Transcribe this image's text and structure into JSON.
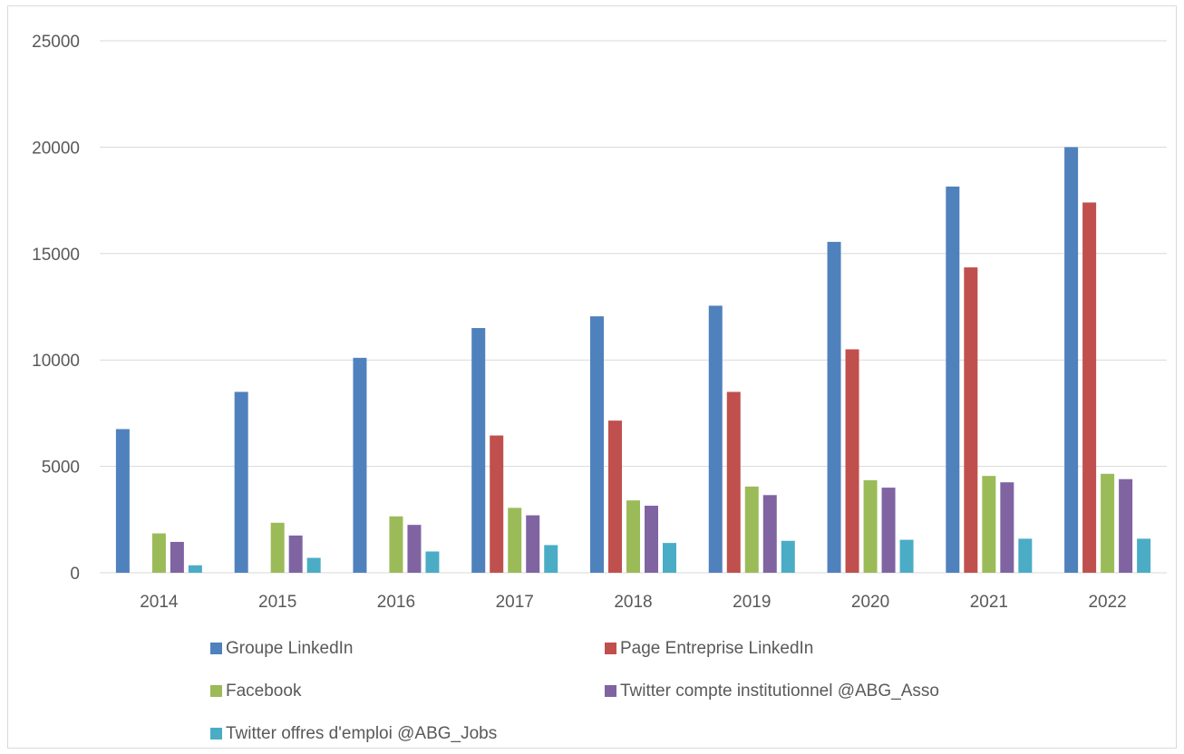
{
  "chart_data": {
    "type": "bar",
    "title": "",
    "xlabel": "",
    "ylabel": "",
    "categories": [
      "2014",
      "2015",
      "2016",
      "2017",
      "2018",
      "2019",
      "2020",
      "2021",
      "2022"
    ],
    "ylim": [
      0,
      25000
    ],
    "yticks": [
      0,
      5000,
      10000,
      15000,
      20000,
      25000
    ],
    "grid": true,
    "legend_position": "bottom",
    "series": [
      {
        "name": "Groupe LinkedIn",
        "color": "#4f81bd",
        "values": [
          6750,
          8500,
          10100,
          11500,
          12050,
          12550,
          15550,
          18150,
          20000
        ]
      },
      {
        "name": "Page Entreprise LinkedIn",
        "color": "#c0504d",
        "values": [
          0,
          0,
          0,
          6450,
          7150,
          8500,
          10500,
          14350,
          17400
        ]
      },
      {
        "name": "Facebook",
        "color": "#9bbb59",
        "values": [
          1850,
          2350,
          2650,
          3050,
          3400,
          4050,
          4350,
          4550,
          4650
        ]
      },
      {
        "name": "Twitter compte institutionnel @ABG_Asso",
        "color": "#8064a2",
        "values": [
          1450,
          1750,
          2250,
          2700,
          3150,
          3650,
          4000,
          4250,
          4400
        ]
      },
      {
        "name": "Twitter offres d'emploi @ABG_Jobs",
        "color": "#4bacc6",
        "values": [
          350,
          700,
          1000,
          1300,
          1400,
          1500,
          1550,
          1600,
          1600
        ]
      }
    ]
  },
  "style": {
    "gridline_color": "#d9d9d9",
    "axis_color": "#d9d9d9",
    "text_color": "#595959"
  }
}
